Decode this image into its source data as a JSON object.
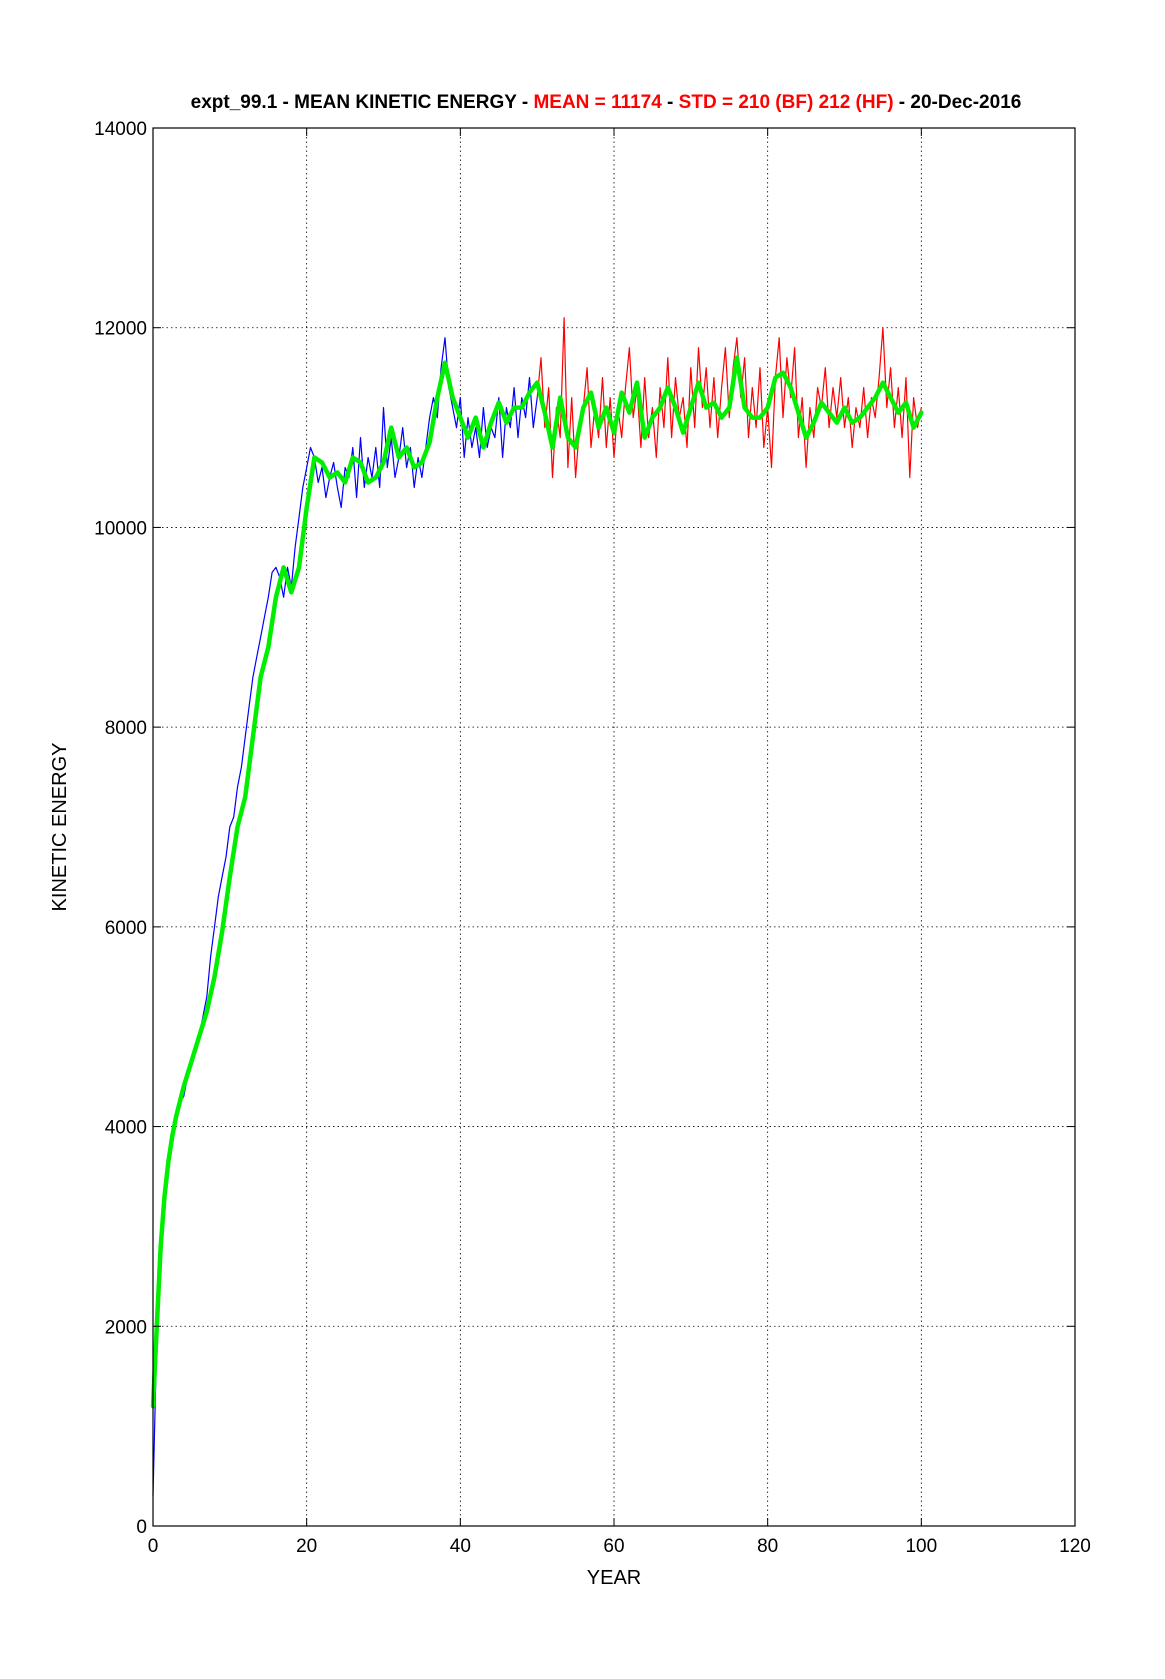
{
  "title": {
    "part1": "expt_99.1 - MEAN KINETIC ENERGY - ",
    "part2": "MEAN = 11174",
    "part3": " - ",
    "part4": "STD =  210 (BF)  212 (HF)",
    "part5": " - 20-Dec-2016",
    "color_main": "#000000",
    "color_highlight": "#ff0000"
  },
  "chart_data": {
    "type": "line",
    "xlabel": "YEAR",
    "ylabel": "KINETIC ENERGY",
    "xlim": [
      0,
      120
    ],
    "ylim": [
      0,
      14000
    ],
    "xticks": [
      0,
      20,
      40,
      60,
      80,
      100,
      120
    ],
    "yticks": [
      0,
      2000,
      4000,
      6000,
      8000,
      10000,
      12000,
      14000
    ],
    "grid": true,
    "series": [
      {
        "color": "#0000ff",
        "x": [
          0.0,
          0.5,
          1.0,
          1.5,
          2.0,
          2.5,
          3.0,
          3.5,
          4.0,
          4.5,
          5.0,
          5.5,
          6.0,
          6.5,
          7.0,
          7.5,
          8.0,
          8.5,
          9.0,
          9.5,
          10.0,
          10.5,
          11.0,
          11.5,
          12.0,
          12.5,
          13.0,
          13.5,
          14.0,
          14.5,
          15.0,
          15.5,
          16.0,
          16.5,
          17.0,
          17.5,
          18.0,
          18.5,
          19.0,
          19.5,
          20.0,
          20.5,
          21.0,
          21.5,
          22.0,
          22.5,
          23.0,
          23.5,
          24.0,
          24.5,
          25.0,
          25.5,
          26.0,
          26.5,
          27.0,
          27.5,
          28.0,
          28.5,
          29.0,
          29.5,
          30.0,
          30.5,
          31.0,
          31.5,
          32.0,
          32.5,
          33.0,
          33.5,
          34.0,
          34.5,
          35.0,
          35.5,
          36.0,
          36.5,
          37.0,
          37.5,
          38.0,
          38.5,
          39.0,
          39.5,
          40.0,
          40.5,
          41.0,
          41.5,
          42.0,
          42.5,
          43.0,
          43.5,
          44.0,
          44.5,
          45.0,
          45.5,
          46.0,
          46.5,
          47.0,
          47.5,
          48.0,
          48.5,
          49.0,
          49.5,
          50.0
        ],
        "y": [
          300,
          1900,
          2800,
          3300,
          3600,
          3900,
          4100,
          4250,
          4300,
          4500,
          4600,
          4800,
          4900,
          5100,
          5300,
          5700,
          6000,
          6300,
          6500,
          6700,
          7000,
          7100,
          7400,
          7600,
          7900,
          8200,
          8500,
          8700,
          8900,
          9100,
          9300,
          9550,
          9600,
          9500,
          9300,
          9600,
          9400,
          9800,
          10100,
          10400,
          10600,
          10800,
          10700,
          10450,
          10600,
          10300,
          10500,
          10650,
          10400,
          10200,
          10600,
          10500,
          10800,
          10300,
          10900,
          10400,
          10700,
          10500,
          10800,
          10400,
          11200,
          10600,
          10900,
          10500,
          10700,
          11000,
          10600,
          10800,
          10400,
          10700,
          10500,
          10800,
          11100,
          11300,
          11100,
          11600,
          11900,
          11400,
          11200,
          11000,
          11300,
          10700,
          11100,
          10800,
          11000,
          10700,
          11200,
          10800,
          11000,
          10900,
          11300,
          10700,
          11200,
          11000,
          11400,
          10900,
          11300,
          11100,
          11500,
          11000,
          11300
        ]
      },
      {
        "color": "#ff0000",
        "x": [
          50.0,
          50.5,
          51.0,
          51.5,
          52.0,
          52.5,
          53.0,
          53.5,
          54.0,
          54.5,
          55.0,
          55.5,
          56.0,
          56.5,
          57.0,
          57.5,
          58.0,
          58.5,
          59.0,
          59.5,
          60.0,
          60.5,
          61.0,
          61.5,
          62.0,
          62.5,
          63.0,
          63.5,
          64.0,
          64.5,
          65.0,
          65.5,
          66.0,
          66.5,
          67.0,
          67.5,
          68.0,
          68.5,
          69.0,
          69.5,
          70.0,
          70.5,
          71.0,
          71.5,
          72.0,
          72.5,
          73.0,
          73.5,
          74.0,
          74.5,
          75.0,
          75.5,
          76.0,
          76.5,
          77.0,
          77.5,
          78.0,
          78.5,
          79.0,
          79.5,
          80.0,
          80.5,
          81.0,
          81.5,
          82.0,
          82.5,
          83.0,
          83.5,
          84.0,
          84.5,
          85.0,
          85.5,
          86.0,
          86.5,
          87.0,
          87.5,
          88.0,
          88.5,
          89.0,
          89.5,
          90.0,
          90.5,
          91.0,
          91.5,
          92.0,
          92.5,
          93.0,
          93.5,
          94.0,
          94.5,
          95.0,
          95.5,
          96.0,
          96.5,
          97.0,
          97.5,
          98.0,
          98.5,
          99.0,
          99.5,
          100.0
        ],
        "y": [
          11300,
          11700,
          11000,
          11400,
          10500,
          11200,
          10900,
          12100,
          10600,
          11300,
          10500,
          11000,
          11200,
          11600,
          10800,
          11200,
          10900,
          11500,
          10800,
          11300,
          10700,
          11200,
          10900,
          11400,
          11800,
          11100,
          11400,
          10800,
          11500,
          10900,
          11200,
          10700,
          11400,
          11000,
          11700,
          10900,
          11500,
          11100,
          11300,
          10800,
          11600,
          11000,
          11800,
          11200,
          11600,
          11000,
          11500,
          10900,
          11400,
          11800,
          11100,
          11600,
          11900,
          11300,
          11700,
          10900,
          11400,
          11000,
          11600,
          10800,
          11200,
          10600,
          11500,
          11900,
          11100,
          11700,
          11300,
          11800,
          10900,
          11300,
          10600,
          11200,
          10900,
          11400,
          11200,
          11600,
          11000,
          11400,
          11100,
          11500,
          11000,
          11300,
          10800,
          11200,
          11000,
          11400,
          10900,
          11300,
          11100,
          11500,
          12000,
          11200,
          11600,
          11000,
          11400,
          10900,
          11500,
          10500,
          11300,
          11000,
          11200
        ]
      },
      {
        "color": "#00ee00",
        "x": [
          0.0,
          0.5,
          1.0,
          1.5,
          2.0,
          2.5,
          3.0,
          3.5,
          4.0,
          5.0,
          6.0,
          7.0,
          8.0,
          9.0,
          10.0,
          11.0,
          12.0,
          13.0,
          14.0,
          15.0,
          16.0,
          17.0,
          18.0,
          19.0,
          20.0,
          21.0,
          22.0,
          23.0,
          24.0,
          25.0,
          26.0,
          27.0,
          28.0,
          29.0,
          30.0,
          31.0,
          32.0,
          33.0,
          34.0,
          35.0,
          36.0,
          37.0,
          38.0,
          39.0,
          40.0,
          41.0,
          42.0,
          43.0,
          44.0,
          45.0,
          46.0,
          47.0,
          48.0,
          49.0,
          50.0,
          51.0,
          52.0,
          53.0,
          54.0,
          55.0,
          56.0,
          57.0,
          58.0,
          59.0,
          60.0,
          61.0,
          62.0,
          63.0,
          64.0,
          65.0,
          66.0,
          67.0,
          68.0,
          69.0,
          70.0,
          71.0,
          72.0,
          73.0,
          74.0,
          75.0,
          76.0,
          77.0,
          78.0,
          79.0,
          80.0,
          81.0,
          82.0,
          83.0,
          84.0,
          85.0,
          86.0,
          87.0,
          88.0,
          89.0,
          90.0,
          91.0,
          92.0,
          93.0,
          94.0,
          95.0,
          96.0,
          97.0,
          98.0,
          99.0,
          100.0
        ],
        "y": [
          1200,
          2000,
          2800,
          3300,
          3650,
          3900,
          4100,
          4250,
          4400,
          4650,
          4900,
          5150,
          5500,
          5950,
          6500,
          7000,
          7300,
          7900,
          8500,
          8800,
          9300,
          9600,
          9350,
          9600,
          10200,
          10700,
          10650,
          10500,
          10550,
          10450,
          10700,
          10650,
          10450,
          10500,
          10650,
          11000,
          10700,
          10800,
          10600,
          10650,
          10850,
          11300,
          11650,
          11300,
          11100,
          10900,
          11100,
          10800,
          11050,
          11250,
          11050,
          11200,
          11200,
          11350,
          11450,
          11150,
          10800,
          11300,
          10900,
          10800,
          11200,
          11350,
          11000,
          11200,
          10950,
          11350,
          11150,
          11450,
          10900,
          11100,
          11200,
          11400,
          11200,
          10950,
          11200,
          11450,
          11200,
          11250,
          11100,
          11200,
          11700,
          11200,
          11100,
          11100,
          11200,
          11500,
          11550,
          11400,
          11150,
          10900,
          11050,
          11250,
          11150,
          11050,
          11200,
          11050,
          11100,
          11200,
          11300,
          11450,
          11300,
          11150,
          11250,
          11000,
          11150
        ]
      }
    ]
  }
}
